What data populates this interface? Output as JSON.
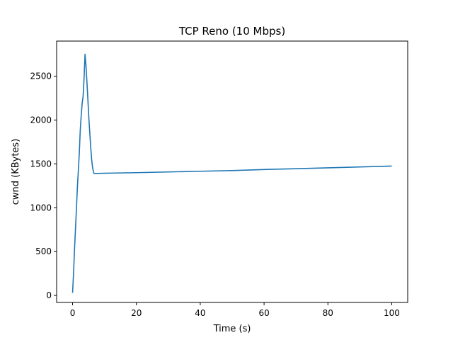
{
  "chart_data": {
    "type": "line",
    "title": "TCP Reno (10 Mbps)",
    "xlabel": "Time (s)",
    "ylabel": "cwnd (KBytes)",
    "xlim": [
      -5,
      105
    ],
    "ylim": [
      -80,
      2900
    ],
    "x_ticks": [
      0,
      20,
      40,
      60,
      80,
      100
    ],
    "y_ticks": [
      0,
      500,
      1000,
      1500,
      2000,
      2500
    ],
    "grid": false,
    "series": [
      {
        "color": "#1f77b4",
        "x": [
          0,
          0.3,
          0.6,
          0.9,
          1.2,
          1.5,
          1.8,
          2.1,
          2.4,
          2.7,
          3.0,
          3.3,
          3.6,
          3.9,
          4.2,
          4.5,
          4.8,
          5.1,
          5.4,
          5.7,
          6.0,
          6.3,
          6.6,
          6.8,
          10,
          20,
          30,
          40,
          50,
          60,
          70,
          80,
          90,
          100
        ],
        "y": [
          30,
          250,
          520,
          750,
          980,
          1230,
          1420,
          1620,
          1880,
          2050,
          2190,
          2270,
          2480,
          2750,
          2620,
          2430,
          2230,
          2020,
          1850,
          1680,
          1540,
          1450,
          1400,
          1390,
          1393,
          1400,
          1408,
          1416,
          1424,
          1436,
          1445,
          1455,
          1465,
          1475
        ]
      }
    ]
  }
}
